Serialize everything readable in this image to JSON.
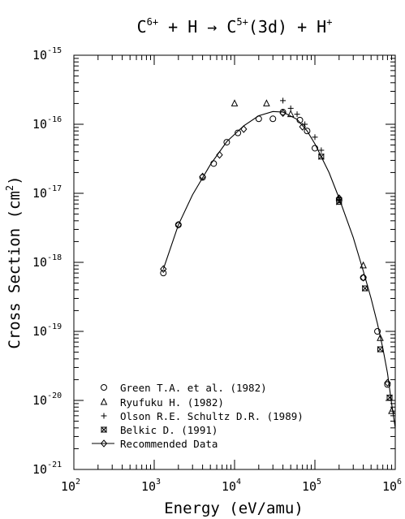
{
  "chart_data": {
    "type": "scatter",
    "title": {
      "reaction": "C6+ + H → C5+(3d) + H+"
    },
    "xlabel": "Energy (eV/amu)",
    "ylabel": "Cross Section (cm2)",
    "xscale": "log",
    "yscale": "log",
    "xlim": [
      100,
      1000000
    ],
    "ylim": [
      1e-21,
      1e-15
    ],
    "x_ticks": [
      {
        "base": "10",
        "exp": "2"
      },
      {
        "base": "10",
        "exp": "3"
      },
      {
        "base": "10",
        "exp": "4"
      },
      {
        "base": "10",
        "exp": "5"
      },
      {
        "base": "10",
        "exp": "6"
      }
    ],
    "y_ticks": [
      {
        "base": "10",
        "exp": "-21"
      },
      {
        "base": "10",
        "exp": "-20"
      },
      {
        "base": "10",
        "exp": "-19"
      },
      {
        "base": "10",
        "exp": "-18"
      },
      {
        "base": "10",
        "exp": "-17"
      },
      {
        "base": "10",
        "exp": "-16"
      },
      {
        "base": "10",
        "exp": "-15"
      }
    ],
    "legend_position": "bottom-left",
    "series": [
      {
        "name": "Green T.A. et al. (1982)",
        "marker": "circle",
        "points": [
          [
            1300,
            7e-19
          ],
          [
            2000,
            3.5e-18
          ],
          [
            4000,
            1.7e-17
          ],
          [
            5500,
            2.7e-17
          ],
          [
            8000,
            5.5e-17
          ],
          [
            11000,
            7.5e-17
          ],
          [
            20000,
            1.2e-16
          ],
          [
            30000,
            1.2e-16
          ],
          [
            40000,
            1.5e-16
          ],
          [
            65000,
            1.15e-16
          ],
          [
            80000,
            8e-17
          ],
          [
            100000,
            4.5e-17
          ],
          [
            200000,
            8e-18
          ],
          [
            400000,
            6e-19
          ],
          [
            600000,
            1e-19
          ],
          [
            800000,
            1.7e-20
          ]
        ]
      },
      {
        "name": "Ryufuku H. (1982)",
        "marker": "triangle",
        "points": [
          [
            10000,
            2e-16
          ],
          [
            25000,
            2e-16
          ],
          [
            50000,
            1.4e-16
          ],
          [
            400000,
            9e-19
          ],
          [
            650000,
            8e-20
          ],
          [
            900000,
            7e-21
          ]
        ]
      },
      {
        "name": "Olson R.E. Schultz D.R. (1989)",
        "marker": "plus",
        "points": [
          [
            40000,
            2.2e-16
          ],
          [
            50000,
            1.7e-16
          ],
          [
            60000,
            1.4e-16
          ],
          [
            75000,
            1e-16
          ],
          [
            100000,
            6.5e-17
          ],
          [
            120000,
            4.2e-17
          ],
          [
            200000,
            8.5e-18
          ]
        ]
      },
      {
        "name": "Belkic D. (1991)",
        "marker": "x-box",
        "points": [
          [
            120000,
            3.4e-17
          ],
          [
            200000,
            7.5e-18
          ],
          [
            420000,
            4.2e-19
          ],
          [
            650000,
            5.5e-20
          ],
          [
            850000,
            1.1e-20
          ]
        ]
      },
      {
        "name": "Recommended Data",
        "marker": "diamond",
        "style": "line",
        "points": [
          [
            1300,
            8e-19
          ],
          [
            2000,
            3.5e-18
          ],
          [
            3000,
            9.5e-18
          ],
          [
            5000,
            2.6e-17
          ],
          [
            8000,
            5.6e-17
          ],
          [
            13000,
            9.5e-17
          ],
          [
            20000,
            1.33e-16
          ],
          [
            30000,
            1.53e-16
          ],
          [
            40000,
            1.5e-16
          ],
          [
            60000,
            1.18e-16
          ],
          [
            80000,
            8e-17
          ],
          [
            100000,
            5.2e-17
          ],
          [
            150000,
            2e-17
          ],
          [
            200000,
            8.5e-18
          ],
          [
            300000,
            2.3e-18
          ],
          [
            400000,
            7.5e-19
          ],
          [
            500000,
            3e-19
          ],
          [
            600000,
            1.3e-19
          ],
          [
            700000,
            5.7e-20
          ],
          [
            800000,
            2.5e-20
          ],
          [
            900000,
            9e-21
          ],
          [
            1000000,
            4e-21
          ]
        ],
        "marker_points": [
          [
            1300,
            8e-19
          ],
          [
            2000,
            3.5e-18
          ],
          [
            4000,
            1.75e-17
          ],
          [
            6500,
            3.6e-17
          ],
          [
            13000,
            8.5e-17
          ],
          [
            40000,
            1.45e-16
          ],
          [
            70000,
            9.2e-17
          ],
          [
            200000,
            8.5e-18
          ],
          [
            400000,
            6e-19
          ],
          [
            800000,
            1.8e-20
          ]
        ]
      }
    ]
  }
}
